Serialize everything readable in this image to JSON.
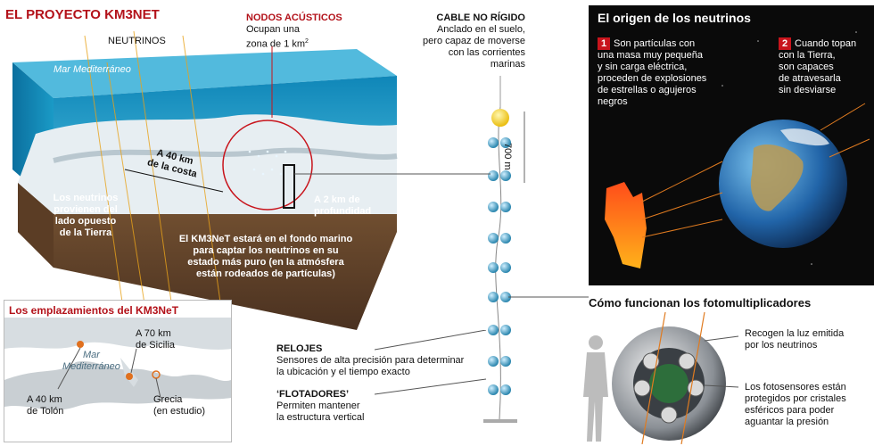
{
  "title": "EL PROYECTO KM3NET",
  "labels": {
    "neutrinos": "NEUTRINOS",
    "mar": "Mar Mediterráneo",
    "costa_1": "A 40 km",
    "costa_2": "de la costa",
    "profundidad_1": "A 2 km de",
    "profundidad_2": "profundidad",
    "opuesto_1": "Los neutrinos",
    "opuesto_2": "provienen del",
    "opuesto_3": "lado opuesto",
    "opuesto_4": "de la Tierra",
    "fondo_1": "El KM3NeT estará en el fondo marino",
    "fondo_2": "para captar los neutrinos en su",
    "fondo_3": "estado más puro (en la atmósfera",
    "fondo_4": "están rodeados de partículas)"
  },
  "nodos": {
    "title": "NODOS ACÚSTICOS",
    "line1": "Ocupan una",
    "line2": "zona de 1 km",
    "sup": "2"
  },
  "cable": {
    "title": "CABLE NO RÍGIDO",
    "line1": "Anclado en el suelo,",
    "line2": "pero capaz de moverse",
    "line3": "con las corrientes",
    "line4": "marinas",
    "height": "700 m"
  },
  "relojes": {
    "title": "RELOJES",
    "line1": "Sensores de alta precisión para determinar",
    "line2": "la ubicación y el tiempo exacto"
  },
  "flotadores": {
    "title": "‘FLOTADORES’",
    "line1": "Permiten mantener",
    "line2": "la estructura vertical"
  },
  "origen": {
    "title": "El origen de los neutrinos",
    "n1": "1",
    "p1_1": "Son partículas con",
    "p1_2": "una masa muy pequeña",
    "p1_3": "y sin carga eléctrica,",
    "p1_4": "proceden de explosiones",
    "p1_5": "de estrellas o agujeros",
    "p1_6": "negros",
    "n2": "2",
    "p2_1": "Cuando topan",
    "p2_2": "con la Tierra,",
    "p2_3": "son capaces",
    "p2_4": "de atravesarla",
    "p2_5": "sin desviarse"
  },
  "emplazamientos": {
    "title": "Los emplazamientos del KM3NeT",
    "mar_1": "Mar",
    "mar_2": "Mediterráneo",
    "sicilia_1": "A 70 km",
    "sicilia_2": "de Sicilia",
    "tolon_1": "A 40 km",
    "tolon_2": "de Tolón",
    "grecia_1": "Grecia",
    "grecia_2": "(en estudio)"
  },
  "foto": {
    "title": "Cómo funcionan los fotomultiplicadores",
    "r1_1": "Recogen la luz emitida",
    "r1_2": "por los neutrinos",
    "r2_1": "Los fotosensores están",
    "r2_2": "protegidos por cristales",
    "r2_3": "esféricos para poder",
    "r2_4": "aguantar la presión"
  },
  "colors": {
    "accent_red": "#b3121a",
    "sea": "#1f9fc7",
    "earth_brown": "#6b4a2e"
  }
}
